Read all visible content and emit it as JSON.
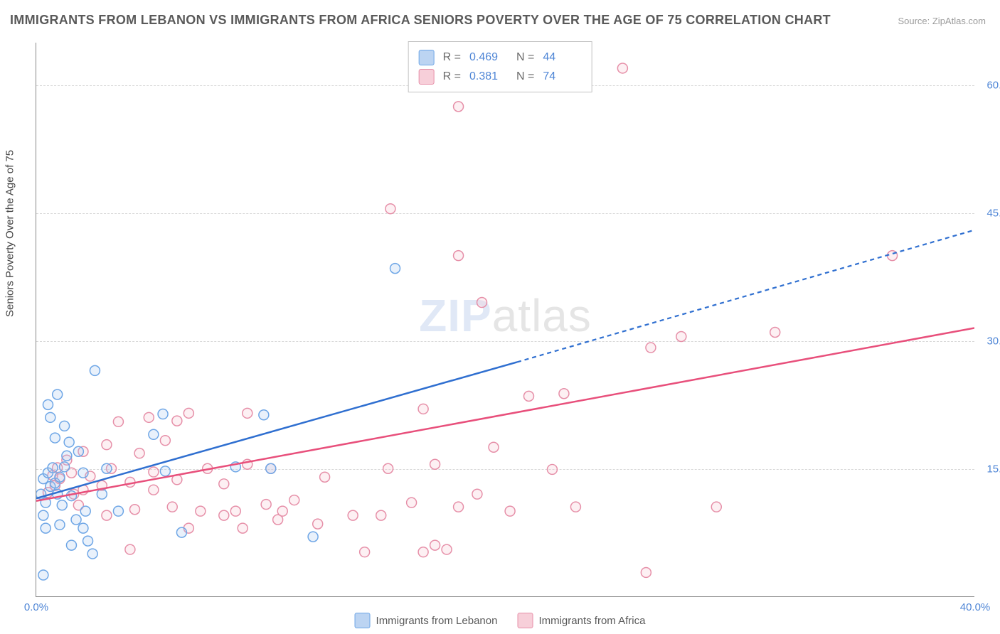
{
  "title": "IMMIGRANTS FROM LEBANON VS IMMIGRANTS FROM AFRICA SENIORS POVERTY OVER THE AGE OF 75 CORRELATION CHART",
  "source_prefix": "Source: ",
  "source_name": "ZipAtlas.com",
  "y_axis_label": "Seniors Poverty Over the Age of 75",
  "watermark_a": "ZIP",
  "watermark_b": "atlas",
  "chart": {
    "type": "scatter",
    "xlim": [
      0,
      40
    ],
    "ylim": [
      0,
      65
    ],
    "x_ticks": [
      0,
      40
    ],
    "x_tick_labels": [
      "0.0%",
      "40.0%"
    ],
    "y_ticks": [
      15,
      30,
      45,
      60
    ],
    "y_tick_labels": [
      "15.0%",
      "30.0%",
      "45.0%",
      "60.0%"
    ],
    "background_color": "#ffffff",
    "grid_color": "#d8d8d8",
    "series": [
      {
        "name": "Immigrants from Lebanon",
        "marker_stroke": "#6ea6e6",
        "marker_fill": "#a8c9f0",
        "line_color": "#2f6fd0",
        "swatch_fill": "#bcd4f2",
        "swatch_border": "#6ea6e6",
        "r_value": "0.469",
        "n_value": "44",
        "marker_radius": 7,
        "trend": {
          "x1": 0,
          "y1": 11.5,
          "x2": 20.5,
          "y2": 27.5,
          "dash_x2": 40,
          "dash_y2": 43
        },
        "points": [
          [
            0.2,
            12.0
          ],
          [
            0.3,
            13.8
          ],
          [
            0.4,
            11.0
          ],
          [
            0.5,
            14.5
          ],
          [
            0.6,
            12.9
          ],
          [
            0.7,
            15.1
          ],
          [
            0.8,
            13.3
          ],
          [
            0.9,
            12.0
          ],
          [
            1.0,
            14.0
          ],
          [
            1.1,
            10.7
          ],
          [
            1.2,
            15.2
          ],
          [
            1.3,
            16.5
          ],
          [
            1.4,
            18.1
          ],
          [
            1.5,
            11.8
          ],
          [
            0.5,
            22.5
          ],
          [
            0.6,
            21.0
          ],
          [
            0.9,
            23.7
          ],
          [
            2.5,
            26.5
          ],
          [
            1.7,
            9.0
          ],
          [
            2.0,
            8.0
          ],
          [
            2.2,
            6.5
          ],
          [
            2.1,
            10.0
          ],
          [
            2.4,
            5.0
          ],
          [
            1.5,
            6.0
          ],
          [
            1.0,
            8.4
          ],
          [
            0.4,
            8.0
          ],
          [
            0.3,
            9.5
          ],
          [
            0.3,
            2.5
          ],
          [
            3.0,
            15.0
          ],
          [
            5.5,
            14.7
          ],
          [
            5.0,
            19.0
          ],
          [
            5.4,
            21.4
          ],
          [
            6.2,
            7.5
          ],
          [
            8.5,
            15.2
          ],
          [
            10.0,
            15.0
          ],
          [
            9.7,
            21.3
          ],
          [
            11.8,
            7.0
          ],
          [
            3.5,
            10.0
          ],
          [
            2.8,
            12.0
          ],
          [
            1.8,
            17.0
          ],
          [
            2.0,
            14.5
          ],
          [
            15.3,
            38.5
          ],
          [
            1.2,
            20.0
          ],
          [
            0.8,
            18.6
          ]
        ]
      },
      {
        "name": "Immigrants from Africa",
        "marker_stroke": "#e68fa8",
        "marker_fill": "#f6c2d0",
        "line_color": "#e84f7b",
        "swatch_fill": "#f7cfd9",
        "swatch_border": "#e68fa8",
        "r_value": "0.381",
        "n_value": "74",
        "marker_radius": 7,
        "trend": {
          "x1": 0,
          "y1": 11.2,
          "x2": 40,
          "y2": 31.5
        },
        "points": [
          [
            0.5,
            12.2
          ],
          [
            0.8,
            13.0
          ],
          [
            1.0,
            13.8
          ],
          [
            1.5,
            14.5
          ],
          [
            2.0,
            12.5
          ],
          [
            2.0,
            17.0
          ],
          [
            2.3,
            14.1
          ],
          [
            2.8,
            13.0
          ],
          [
            3.0,
            9.5
          ],
          [
            3.0,
            17.8
          ],
          [
            3.2,
            15.0
          ],
          [
            3.5,
            20.5
          ],
          [
            4.0,
            13.4
          ],
          [
            4.2,
            10.2
          ],
          [
            4.4,
            16.8
          ],
          [
            4.8,
            21.0
          ],
          [
            5.0,
            14.6
          ],
          [
            5.0,
            12.5
          ],
          [
            5.5,
            18.3
          ],
          [
            6.0,
            20.6
          ],
          [
            6.0,
            13.7
          ],
          [
            6.5,
            21.5
          ],
          [
            7.0,
            10.0
          ],
          [
            7.3,
            15.0
          ],
          [
            8.0,
            9.5
          ],
          [
            8.0,
            13.2
          ],
          [
            8.5,
            10.0
          ],
          [
            8.8,
            8.0
          ],
          [
            9.0,
            15.5
          ],
          [
            9.0,
            21.5
          ],
          [
            9.8,
            10.8
          ],
          [
            10.0,
            15.0
          ],
          [
            10.3,
            9.0
          ],
          [
            10.5,
            10.0
          ],
          [
            11.0,
            11.3
          ],
          [
            12.0,
            8.5
          ],
          [
            12.3,
            14.0
          ],
          [
            13.5,
            9.5
          ],
          [
            14.0,
            5.2
          ],
          [
            14.7,
            9.5
          ],
          [
            15.0,
            15.0
          ],
          [
            15.1,
            45.5
          ],
          [
            16.0,
            11.0
          ],
          [
            16.5,
            5.2
          ],
          [
            16.5,
            22.0
          ],
          [
            17.0,
            6.0
          ],
          [
            17.0,
            15.5
          ],
          [
            17.5,
            5.5
          ],
          [
            18.0,
            10.5
          ],
          [
            18.0,
            40.0
          ],
          [
            18.0,
            57.5
          ],
          [
            18.8,
            12.0
          ],
          [
            19.5,
            17.5
          ],
          [
            20.2,
            10.0
          ],
          [
            21.0,
            23.5
          ],
          [
            22.5,
            23.8
          ],
          [
            22.0,
            14.9
          ],
          [
            23.0,
            10.5
          ],
          [
            25.0,
            62.0
          ],
          [
            26.0,
            2.8
          ],
          [
            26.2,
            29.2
          ],
          [
            27.5,
            30.5
          ],
          [
            29.0,
            10.5
          ],
          [
            31.5,
            31.0
          ],
          [
            36.5,
            40.0
          ],
          [
            6.5,
            8.0
          ],
          [
            4.0,
            5.5
          ],
          [
            1.8,
            10.7
          ],
          [
            1.3,
            16.0
          ],
          [
            0.9,
            15.1
          ],
          [
            0.7,
            14.2
          ],
          [
            1.6,
            12.0
          ],
          [
            5.8,
            10.5
          ],
          [
            19.0,
            34.5
          ]
        ]
      }
    ]
  },
  "legend_top": {
    "r_label": "R =",
    "n_label": "N ="
  },
  "legend_bottom_labels": [
    "Immigrants from Lebanon",
    "Immigrants from Africa"
  ]
}
